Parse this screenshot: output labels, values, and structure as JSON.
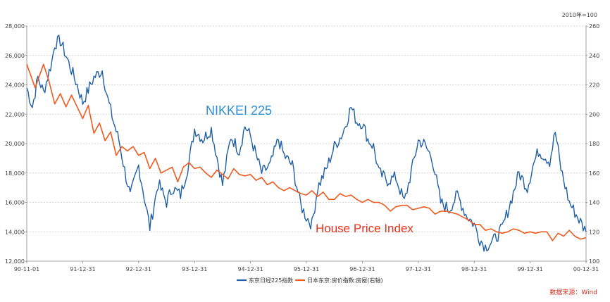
{
  "chart_data": {
    "type": "line",
    "title": "",
    "unit_right": "2010年=100",
    "x_ticks": [
      "90-11-01",
      "91-12-31",
      "92-12-31",
      "93-12-31",
      "94-12-31",
      "95-12-31",
      "96-12-31",
      "97-12-31",
      "98-12-31",
      "99-12-31",
      "00-12-31"
    ],
    "y_left": {
      "min": 12000,
      "max": 28000,
      "ticks": [
        "12,000",
        "14,000",
        "16,000",
        "18,000",
        "20,000",
        "22,000",
        "24,000",
        "26,000",
        "28,000"
      ]
    },
    "y_right": {
      "min": 100,
      "max": 260,
      "ticks": [
        "100",
        "120",
        "140",
        "160",
        "180",
        "200",
        "220",
        "240",
        "260"
      ]
    },
    "series": [
      {
        "name": "东京日经225指数",
        "color": "#1f5fa6",
        "axis": "left",
        "t": [
          0,
          0.1,
          0.2,
          0.3,
          0.45,
          0.5,
          0.6,
          0.75,
          0.9,
          1.0,
          1.2,
          1.35,
          1.45,
          1.55,
          1.65,
          1.75,
          1.85,
          2.0,
          2.2,
          2.35,
          2.5,
          2.6,
          2.75,
          2.9,
          3.0,
          3.15,
          3.3,
          3.5,
          3.65,
          3.8,
          3.9,
          4.0,
          4.1,
          4.2,
          4.35,
          4.5,
          4.6,
          4.75,
          4.9,
          5.0,
          5.1,
          5.2,
          5.35,
          5.5,
          5.65,
          5.8,
          5.9,
          6.0,
          6.1,
          6.2,
          6.3,
          6.45,
          6.6,
          6.75,
          6.9,
          7.0,
          7.1,
          7.25,
          7.4,
          7.55,
          7.7,
          7.85,
          8.0,
          8.1,
          8.2,
          8.35,
          8.5,
          8.65,
          8.8,
          8.95,
          9.05,
          9.15,
          9.25,
          9.35,
          9.45,
          9.55,
          9.7,
          9.85,
          10.0
        ],
        "values": [
          23800,
          22500,
          24500,
          23500,
          25600,
          26800,
          27000,
          25500,
          24000,
          22800,
          24500,
          25000,
          23000,
          21500,
          20200,
          18200,
          16400,
          18500,
          14300,
          17300,
          16000,
          17000,
          16500,
          18700,
          21000,
          20300,
          21000,
          17200,
          20500,
          19500,
          21200,
          20500,
          19200,
          18000,
          18500,
          20300,
          19200,
          18500,
          15800,
          15000,
          14500,
          17000,
          18200,
          19800,
          20700,
          22500,
          21500,
          21400,
          20300,
          19800,
          18000,
          17500,
          17700,
          16000,
          18500,
          20200,
          20000,
          19000,
          16000,
          15500,
          16500,
          15200,
          14500,
          13500,
          13000,
          13400,
          14200,
          16000,
          18000,
          17000,
          18500,
          19500,
          19200,
          18800,
          20800,
          18300,
          16000,
          15000,
          14000
        ]
      },
      {
        "name": "日本东京:房价指数:房屋(右轴)",
        "color": "#f05a1e",
        "axis": "right",
        "t": [
          0,
          0.15,
          0.3,
          0.4,
          0.5,
          0.6,
          0.7,
          0.8,
          0.9,
          1.0,
          1.1,
          1.2,
          1.3,
          1.4,
          1.5,
          1.6,
          1.7,
          1.8,
          1.9,
          2.0,
          2.1,
          2.2,
          2.3,
          2.4,
          2.5,
          2.6,
          2.7,
          2.8,
          2.9,
          3.0,
          3.1,
          3.2,
          3.3,
          3.4,
          3.5,
          3.6,
          3.7,
          3.8,
          3.9,
          4.0,
          4.1,
          4.2,
          4.3,
          4.4,
          4.5,
          4.6,
          4.7,
          4.8,
          4.9,
          5.0,
          5.1,
          5.2,
          5.3,
          5.4,
          5.5,
          5.6,
          5.7,
          5.8,
          5.9,
          6.0,
          6.1,
          6.2,
          6.3,
          6.4,
          6.5,
          6.6,
          6.7,
          6.8,
          6.9,
          7.0,
          7.1,
          7.2,
          7.3,
          7.4,
          7.5,
          7.6,
          7.7,
          7.8,
          7.9,
          8.0,
          8.1,
          8.2,
          8.3,
          8.4,
          8.5,
          8.6,
          8.7,
          8.8,
          8.9,
          9.0,
          9.1,
          9.2,
          9.3,
          9.4,
          9.5,
          9.6,
          9.7,
          9.8,
          9.9,
          10.0
        ],
        "values": [
          234,
          218,
          234,
          222,
          207,
          214,
          205,
          213,
          205,
          197,
          206,
          187,
          194,
          182,
          188,
          172,
          178,
          175,
          178,
          172,
          174,
          163,
          170,
          160,
          162,
          164,
          154,
          164,
          167,
          163,
          164,
          160,
          157,
          162,
          159,
          156,
          163,
          159,
          158,
          159,
          155,
          157,
          152,
          154,
          150,
          148,
          150,
          148,
          146,
          145,
          148,
          144,
          147,
          142,
          142,
          146,
          144,
          145,
          142,
          140,
          142,
          140,
          140,
          138,
          134,
          137,
          138,
          138,
          135,
          136,
          137,
          136,
          132,
          134,
          134,
          133,
          132,
          130,
          128,
          125,
          125,
          121,
          122,
          120,
          119,
          120,
          122,
          121,
          119,
          120,
          119,
          120,
          120,
          114,
          119,
          117,
          121,
          117,
          115,
          116
        ]
      }
    ],
    "annotations": {
      "nikkei": "NIKKEI 225",
      "house": "House Price Index"
    },
    "source": "数据来源：Wind"
  }
}
